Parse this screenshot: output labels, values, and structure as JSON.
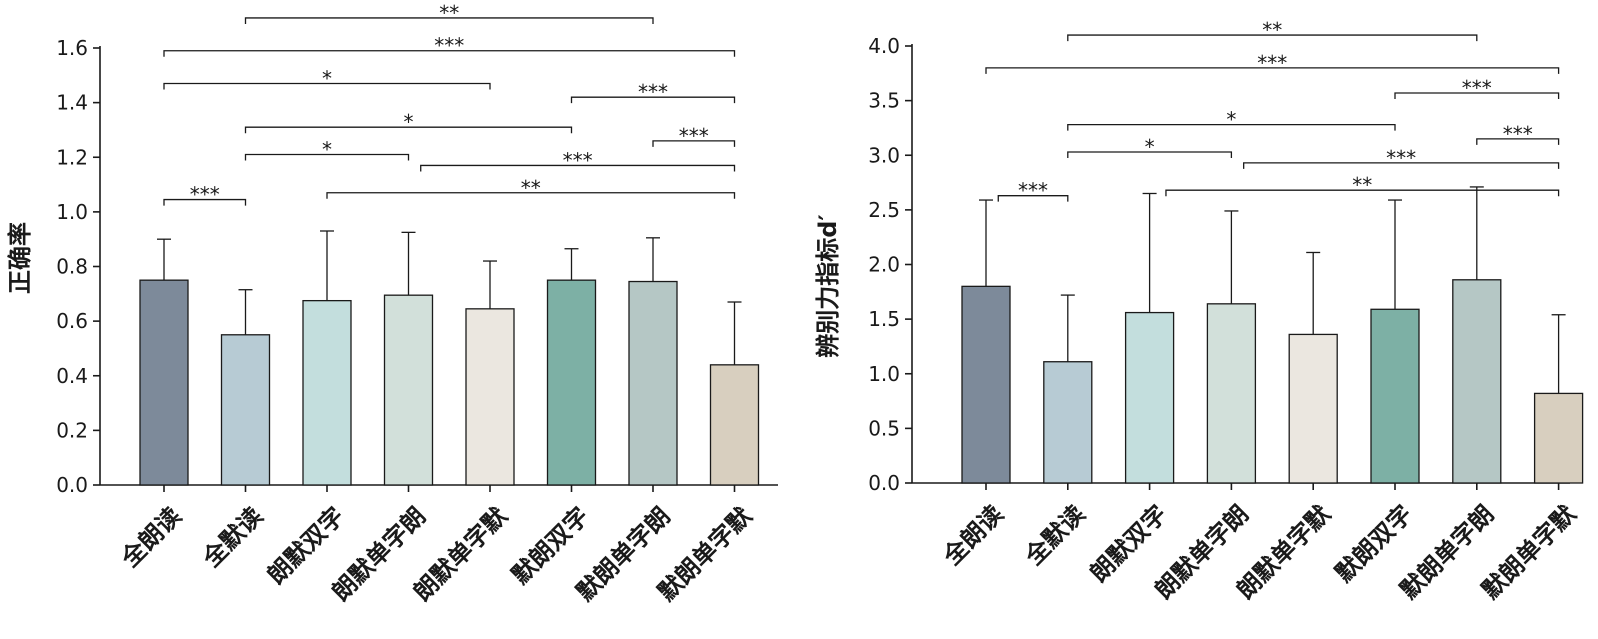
{
  "chart_data": [
    {
      "type": "bar",
      "title": "",
      "xlabel": "",
      "ylabel": "正确率",
      "ylim": [
        0,
        1.6
      ],
      "yticks": [
        "0.0",
        "0.2",
        "0.4",
        "0.6",
        "0.8",
        "1.0",
        "1.2",
        "1.4",
        "1.6"
      ],
      "categories": [
        "全朗读",
        "全默读",
        "朗默双字",
        "朗默单字朗",
        "朗默单字默",
        "默朗双字",
        "默朗单字朗",
        "默朗单字默"
      ],
      "values": [
        0.75,
        0.55,
        0.675,
        0.695,
        0.645,
        0.75,
        0.745,
        0.44
      ],
      "errors": [
        0.15,
        0.165,
        0.255,
        0.23,
        0.175,
        0.115,
        0.16,
        0.23
      ],
      "colors": [
        "#7d8a9a",
        "#b7cbd4",
        "#c3dedd",
        "#d2e0da",
        "#ebe7e0",
        "#7db0a5",
        "#b5c7c5",
        "#d8cfbf"
      ],
      "significance": [
        {
          "from": 1,
          "to": 6,
          "y": 1.71,
          "label": "**"
        },
        {
          "from": 0,
          "to": 7,
          "y": 1.59,
          "label": "***"
        },
        {
          "from": 0,
          "to": 4,
          "y": 1.47,
          "label": "*"
        },
        {
          "from": 5,
          "to": 7,
          "y": 1.42,
          "label": "***"
        },
        {
          "from": 1,
          "to": 5,
          "y": 1.31,
          "label": "*"
        },
        {
          "from": 6,
          "to": 7,
          "y": 1.26,
          "label": "***"
        },
        {
          "from": 1,
          "to": 3,
          "y": 1.21,
          "label": "*"
        },
        {
          "from": 3.15,
          "to": 7,
          "y": 1.17,
          "label": "***"
        },
        {
          "from": 0,
          "to": 1,
          "y": 1.045,
          "label": "***"
        },
        {
          "from": 2,
          "to": 7,
          "y": 1.07,
          "label": "**"
        }
      ]
    },
    {
      "type": "bar",
      "title": "",
      "xlabel": "",
      "ylabel": "辨别力指标d′",
      "ylim": [
        0,
        4.0
      ],
      "yticks": [
        "0.0",
        "0.5",
        "1.0",
        "1.5",
        "2.0",
        "2.5",
        "3.0",
        "3.5",
        "4.0"
      ],
      "categories": [
        "全朗读",
        "全默读",
        "朗默双字",
        "朗默单字朗",
        "朗默单字默",
        "默朗双字",
        "默朗单字朗",
        "默朗单字默"
      ],
      "values": [
        1.8,
        1.11,
        1.56,
        1.64,
        1.36,
        1.59,
        1.86,
        0.82
      ],
      "errors": [
        0.79,
        0.61,
        1.09,
        0.85,
        0.75,
        1.0,
        0.85,
        0.72
      ],
      "colors": [
        "#7d8a9a",
        "#b7cbd4",
        "#c3dedd",
        "#d2e0da",
        "#ebe7e0",
        "#7db0a5",
        "#b5c7c5",
        "#d8cfbf"
      ],
      "significance": [
        {
          "from": 1,
          "to": 6,
          "y": 4.1,
          "label": "**"
        },
        {
          "from": 0,
          "to": 7,
          "y": 3.8,
          "label": "***"
        },
        {
          "from": 5,
          "to": 7,
          "y": 3.57,
          "label": "***"
        },
        {
          "from": 1,
          "to": 5,
          "y": 3.28,
          "label": "*"
        },
        {
          "from": 6,
          "to": 7,
          "y": 3.15,
          "label": "***"
        },
        {
          "from": 1,
          "to": 3,
          "y": 3.03,
          "label": "*"
        },
        {
          "from": 3.15,
          "to": 7,
          "y": 2.93,
          "label": "***"
        },
        {
          "from": 0.15,
          "to": 1,
          "y": 2.63,
          "label": "***"
        },
        {
          "from": 2.2,
          "to": 7,
          "y": 2.68,
          "label": "**"
        }
      ]
    }
  ]
}
